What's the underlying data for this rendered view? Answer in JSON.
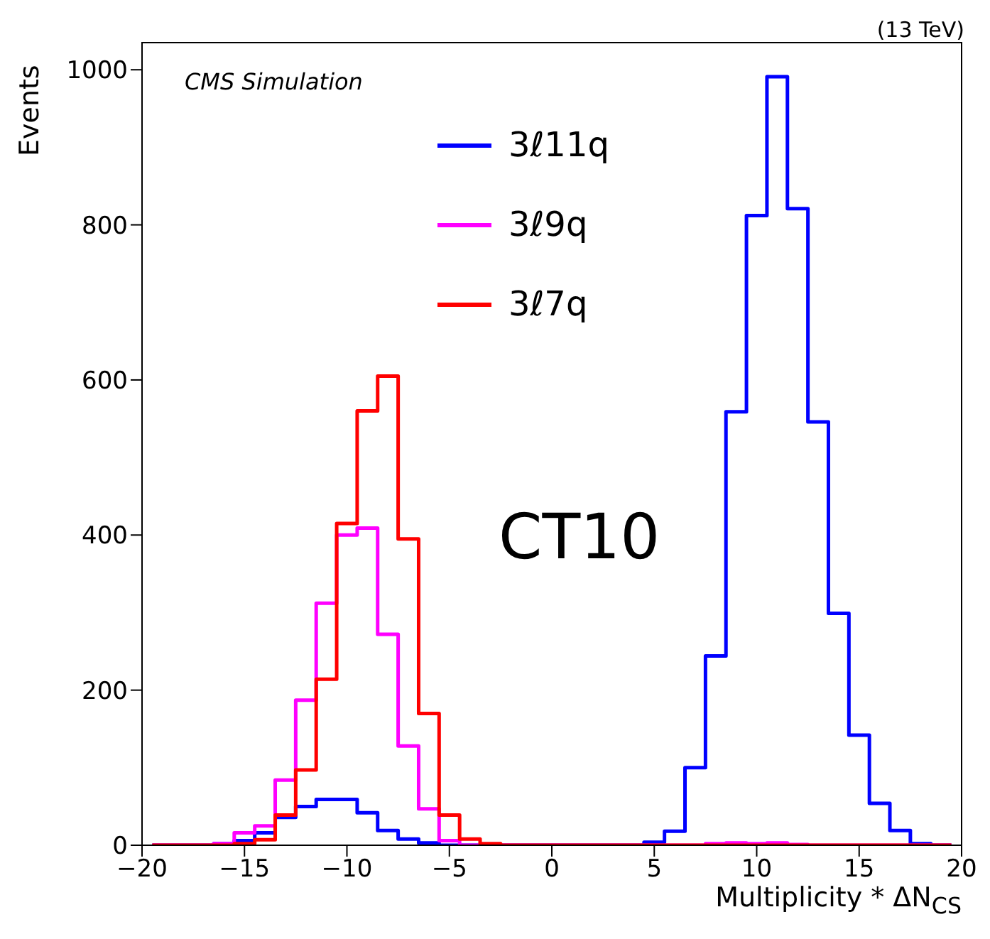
{
  "chart_data": {
    "type": "histogram",
    "xlabel": "Multiplicity * ΔN$_{CS}$",
    "ylabel": "Events",
    "annotations": [
      "(13 TeV)",
      "CMS Simulation",
      "CT10"
    ],
    "bins": [
      -19.5,
      -18.5,
      -17.5,
      -16.5,
      -15.5,
      -14.5,
      -13.5,
      -12.5,
      -11.5,
      -10.5,
      -9.5,
      -8.5,
      -7.5,
      -6.5,
      -5.5,
      -4.5,
      -3.5,
      -2.5,
      -1.5,
      -0.5,
      0.5,
      1.5,
      2.5,
      3.5,
      4.5,
      5.5,
      6.5,
      7.5,
      8.5,
      9.5,
      10.5,
      11.5,
      12.5,
      13.5,
      14.5,
      15.5,
      16.5,
      17.5,
      18.5,
      19.5
    ],
    "series": [
      {
        "name": "3ℓ11q",
        "color": "#0000ff",
        "values": [
          0,
          0,
          0,
          2,
          6,
          16,
          36,
          50,
          59,
          59,
          42,
          19,
          8,
          3,
          0,
          0,
          0,
          0,
          0,
          0,
          0,
          0,
          0,
          0,
          4,
          18,
          100,
          244,
          559,
          812,
          991,
          821,
          546,
          299,
          142,
          54,
          19,
          2,
          0
        ]
      },
      {
        "name": "3ℓ9q",
        "color": "#ff00ff",
        "values": [
          0,
          0,
          0,
          2,
          16,
          25,
          84,
          187,
          312,
          400,
          409,
          272,
          128,
          47,
          6,
          0,
          0,
          0,
          0,
          0,
          0,
          0,
          0,
          0,
          0,
          0,
          0,
          2,
          3,
          2,
          3,
          1,
          0,
          0,
          0,
          0,
          0,
          0,
          0
        ]
      },
      {
        "name": "3ℓ7q",
        "color": "#ff0000",
        "values": [
          0,
          0,
          0,
          0,
          2,
          7,
          39,
          97,
          214,
          415,
          560,
          605,
          395,
          170,
          39,
          8,
          2,
          0,
          0,
          0,
          0,
          0,
          0,
          0,
          0,
          0,
          0,
          0,
          0,
          0,
          0,
          0,
          0,
          0,
          0,
          0,
          0,
          0,
          0
        ]
      }
    ],
    "xlim": [
      -20,
      20
    ],
    "xticks": [
      {
        "value": -20,
        "label": "−20"
      },
      {
        "value": -15,
        "label": "−15"
      },
      {
        "value": -10,
        "label": "−10"
      },
      {
        "value": -5,
        "label": "−5"
      },
      0,
      5,
      10,
      15,
      20
    ],
    "ylim": [
      0,
      1035
    ],
    "yticks": [
      0,
      200,
      400,
      600,
      800,
      1000
    ],
    "legend": "top",
    "grid": false
  }
}
